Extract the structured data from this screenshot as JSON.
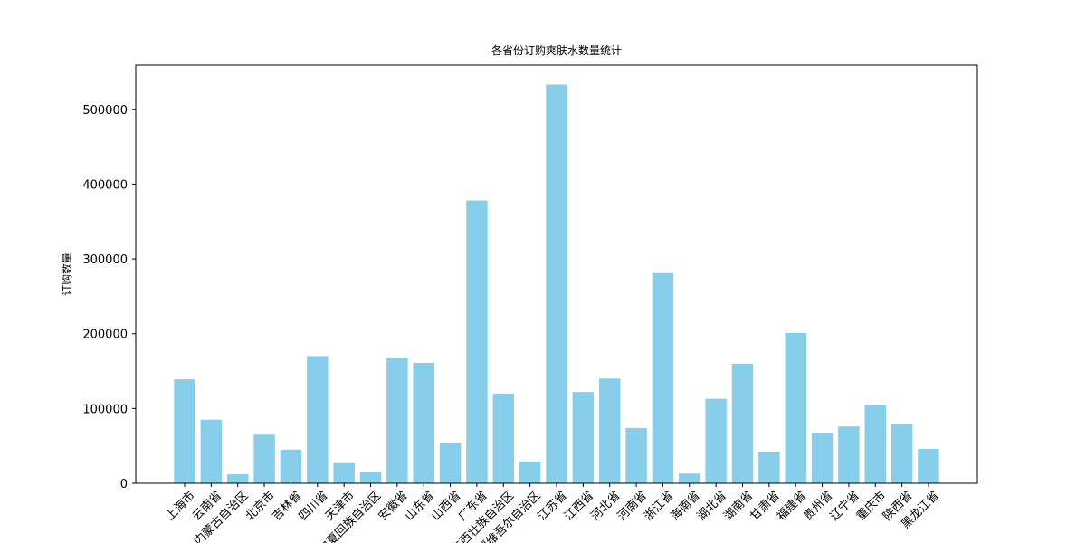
{
  "chart_data": {
    "type": "bar",
    "title": "各省份订购爽肤水数量统计",
    "y_label": "订购数量",
    "categories": [
      "上海市",
      "云南省",
      "内蒙古自治区",
      "北京市",
      "吉林省",
      "四川省",
      "天津市",
      "宁夏回族自治区",
      "安徽省",
      "山东省",
      "山西省",
      "广东省",
      "广西壮族自治区",
      "新疆维吾尔自治区",
      "江苏省",
      "江西省",
      "河北省",
      "河南省",
      "浙江省",
      "海南省",
      "湖北省",
      "湖南省",
      "甘肃省",
      "福建省",
      "贵州省",
      "辽宁省",
      "重庆市",
      "陕西省",
      "黑龙江省"
    ],
    "values": [
      139000,
      85000,
      12000,
      65000,
      45000,
      170000,
      27000,
      15000,
      167000,
      161000,
      54000,
      378000,
      120000,
      29000,
      533000,
      122000,
      140000,
      74000,
      281000,
      13000,
      113000,
      160000,
      42000,
      201000,
      67000,
      76000,
      105000,
      79000,
      46000
    ],
    "color": "#87ceeb",
    "ylim": [
      0,
      559000
    ],
    "yticks": [
      0,
      100000,
      200000,
      300000,
      400000,
      500000
    ],
    "grid": false
  }
}
